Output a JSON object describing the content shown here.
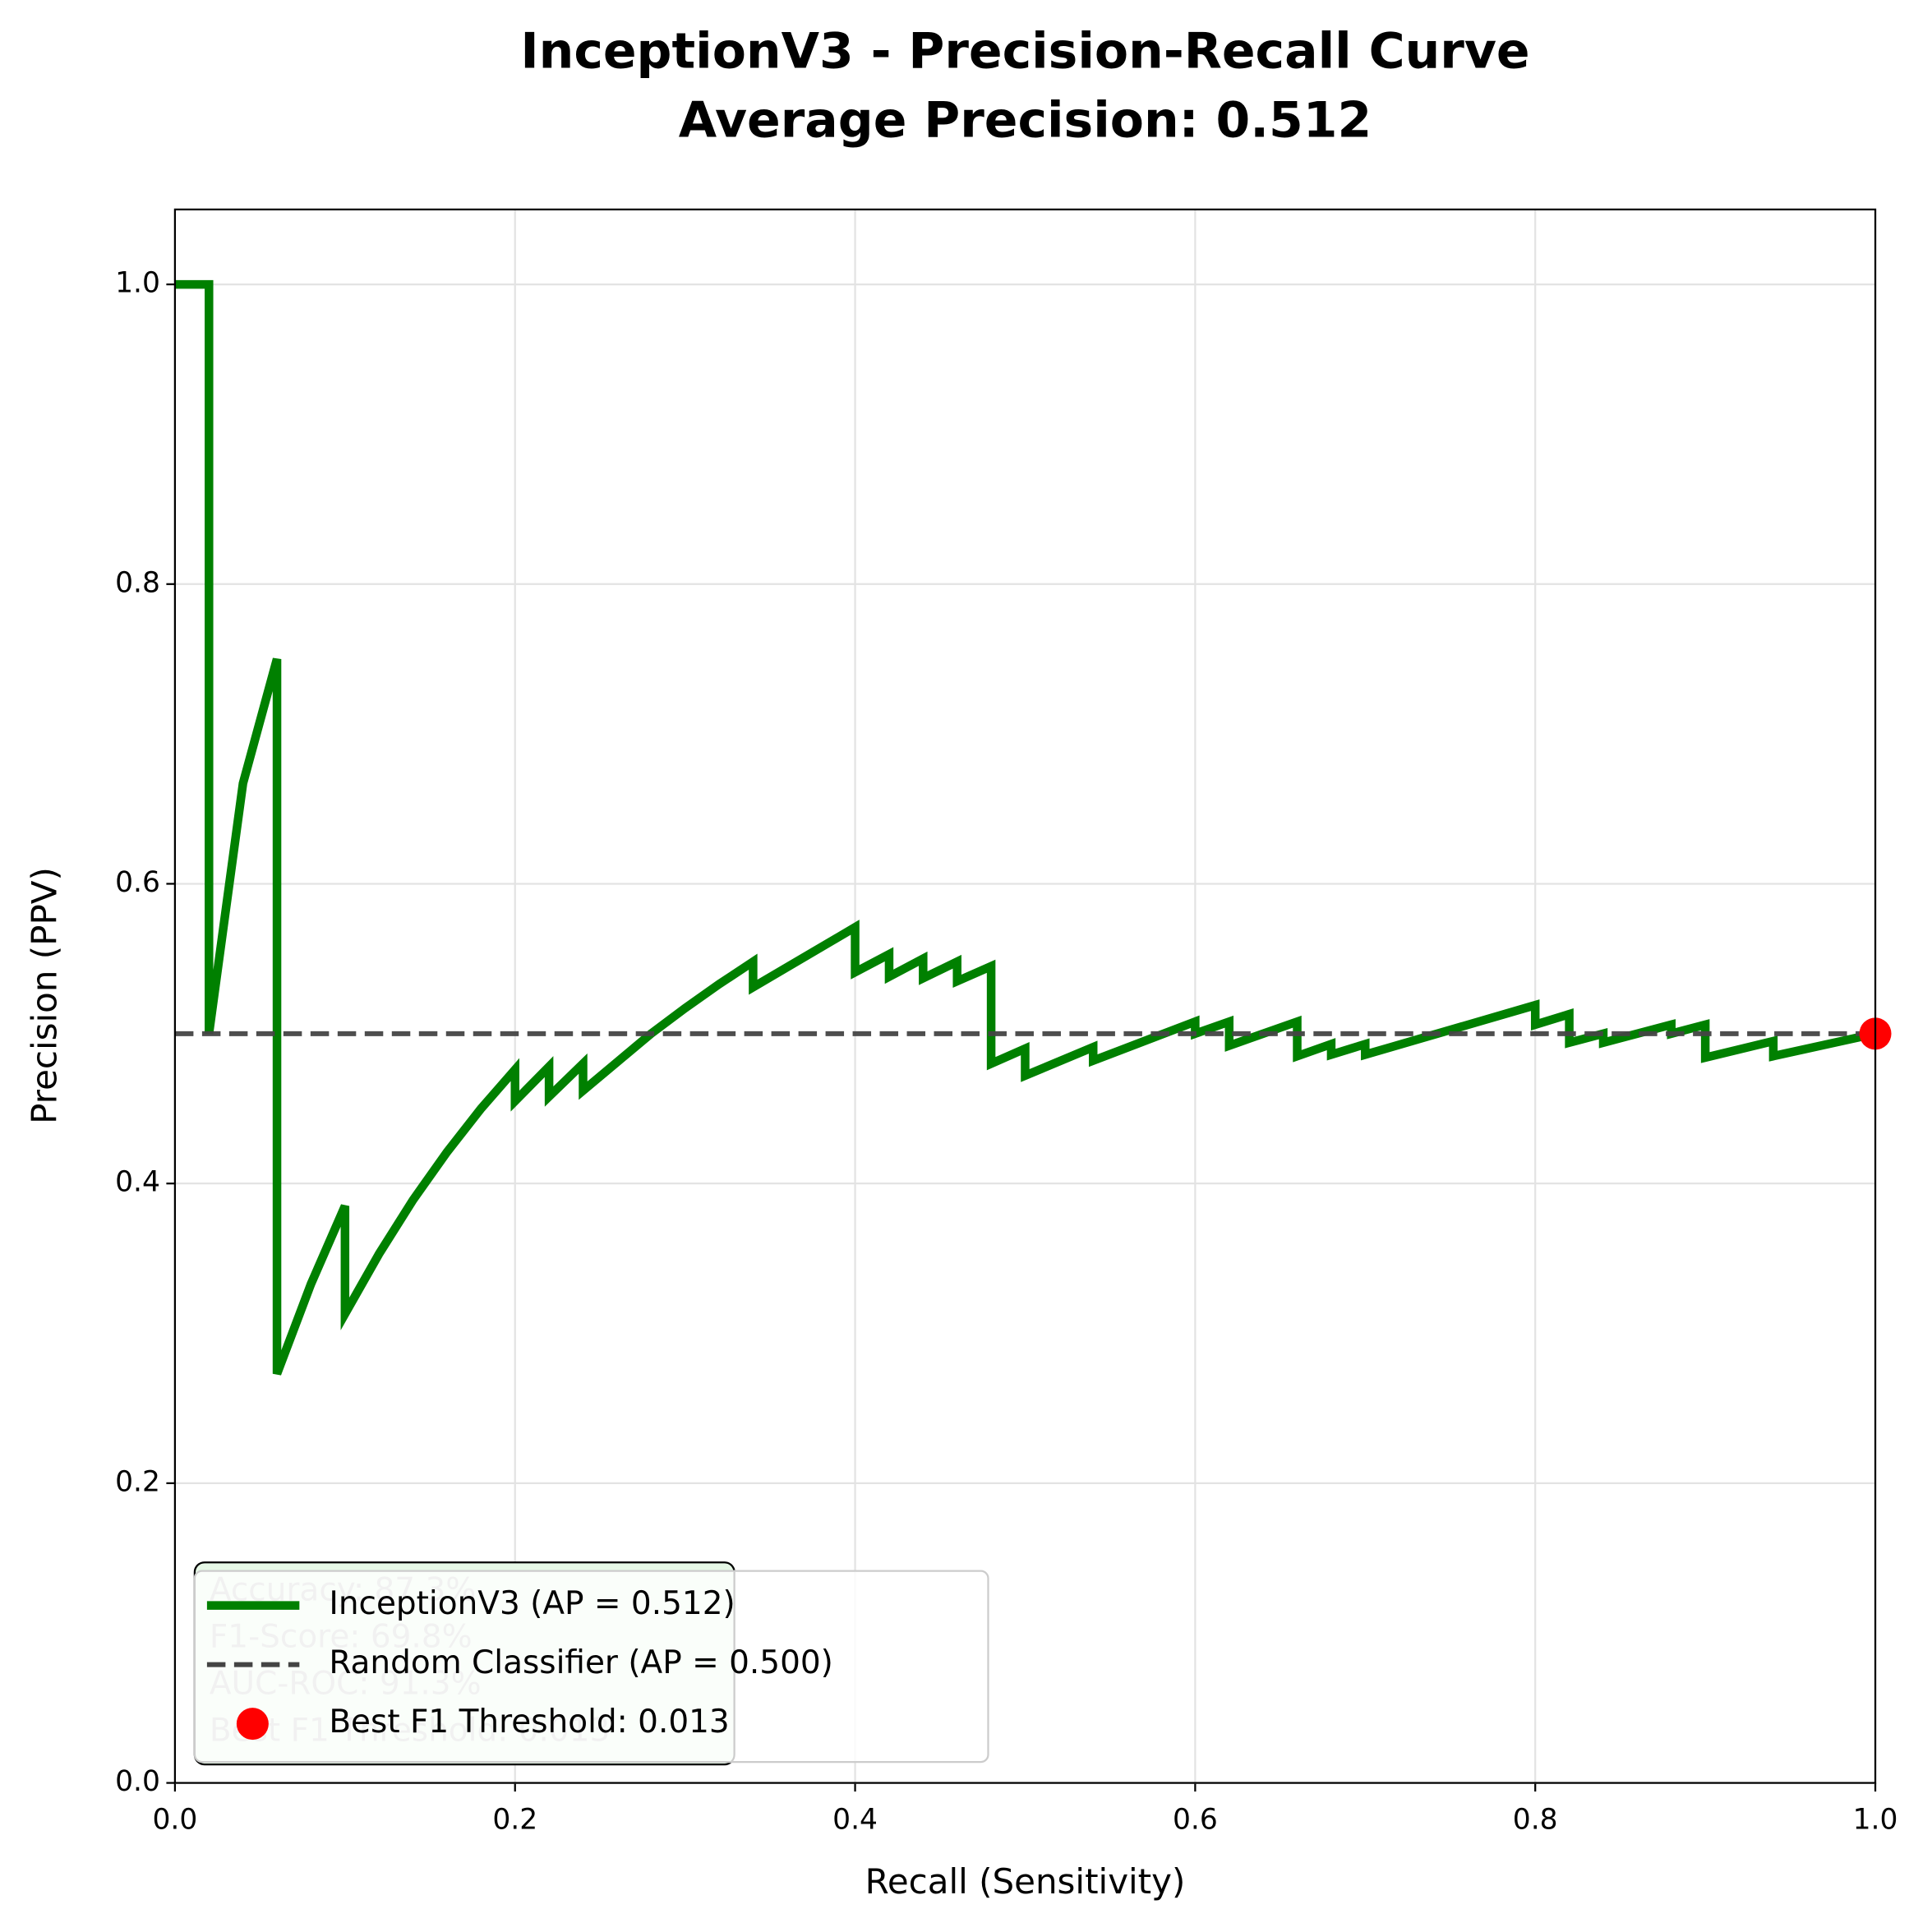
{
  "chart_data": {
    "type": "line",
    "title": "InceptionV3 - Precision-Recall Curve",
    "subtitle": "Average Precision: 0.512",
    "x_label": "Recall (Sensitivity)",
    "y_label": "Precision (PPV)",
    "xlim": [
      0,
      1
    ],
    "ylim": [
      0,
      1.05
    ],
    "xticks": [
      {
        "value": 0,
        "label": "0.0"
      },
      0.2,
      0.4,
      0.6,
      0.8,
      {
        "value": 1,
        "label": "1.0"
      }
    ],
    "yticks": [
      {
        "value": 0,
        "label": "0.0"
      },
      0.2,
      0.4,
      0.6,
      0.8,
      {
        "value": 1,
        "label": "1.0"
      }
    ],
    "grid": true,
    "legend": "lower left",
    "series": [
      {
        "name": "InceptionV3 (AP = 0.512)",
        "color": "#008000",
        "style": "solid",
        "x": [
          0,
          0.02,
          0.02,
          0.04,
          0.06,
          0.06,
          0.08,
          0.1,
          0.1,
          0.12,
          0.14,
          0.16,
          0.18,
          0.2,
          0.2,
          0.22,
          0.22,
          0.24,
          0.24,
          0.26,
          0.28,
          0.3,
          0.32,
          0.34,
          0.34,
          0.4,
          0.4,
          0.42,
          0.42,
          0.44,
          0.44,
          0.46,
          0.46,
          0.48,
          0.48,
          0.5,
          0.5,
          0.54,
          0.54,
          0.6,
          0.6,
          0.62,
          0.62,
          0.66,
          0.66,
          0.68,
          0.68,
          0.7,
          0.7,
          0.8,
          0.8,
          0.82,
          0.82,
          0.84,
          0.84,
          0.88,
          0.88,
          0.9,
          0.9,
          0.94,
          0.94,
          1.0
        ],
        "values": [
          1,
          1,
          0.5,
          0.667,
          0.75,
          0.273,
          0.333,
          0.385,
          0.313,
          0.353,
          0.389,
          0.421,
          0.45,
          0.476,
          0.455,
          0.478,
          0.458,
          0.48,
          0.462,
          0.481,
          0.5,
          0.517,
          0.533,
          0.548,
          0.531,
          0.571,
          0.541,
          0.553,
          0.538,
          0.55,
          0.537,
          0.548,
          0.535,
          0.545,
          0.48,
          0.49,
          0.472,
          0.491,
          0.482,
          0.508,
          0.5,
          0.508,
          0.492,
          0.508,
          0.485,
          0.493,
          0.486,
          0.493,
          0.486,
          0.519,
          0.506,
          0.513,
          0.494,
          0.5,
          0.494,
          0.506,
          0.5,
          0.506,
          0.484,
          0.495,
          0.485,
          0.5
        ]
      },
      {
        "name": "Random Classifier (AP = 0.500)",
        "color": "#444444",
        "style": "dashed",
        "x": [
          0,
          1
        ],
        "values": [
          0.5,
          0.5
        ]
      },
      {
        "name": "Best F1 Threshold: 0.013",
        "color": "#ff0000",
        "style": "marker",
        "x": [
          1.0
        ],
        "values": [
          0.5
        ]
      }
    ],
    "annotations": [
      "Accuracy: 87.3%",
      "F1-Score: 69.8%",
      "AUC-ROC: 91.3%",
      "Best F1 Threshold: 0.013"
    ]
  }
}
